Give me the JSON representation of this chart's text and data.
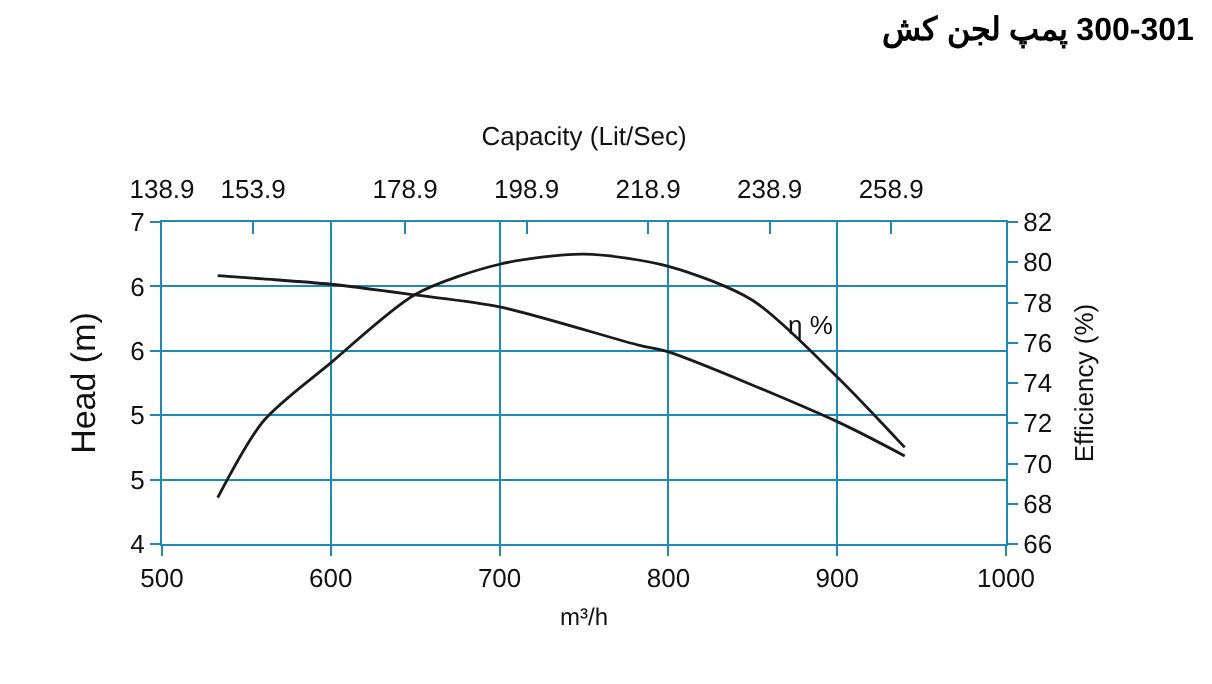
{
  "chart_data": {
    "type": "line",
    "title": "پمپ لجن کش 300-301",
    "xlabel": "m³/h",
    "ylabel": "Head (m)",
    "y2label": "Efficiency (%)",
    "x2label": "Capacity (Lit/Sec)",
    "xlim": [
      500,
      1000
    ],
    "xticks": [
      500,
      600,
      700,
      800,
      900,
      1000
    ],
    "x2lim": [
      138.9,
      277.8
    ],
    "x2ticks": [
      138.9,
      153.9,
      178.9,
      198.9,
      218.9,
      238.9,
      258.9
    ],
    "ylim": [
      4,
      7
    ],
    "yticks": [
      4,
      {
        "value": 4.6,
        "label": "5"
      },
      {
        "value": 5.2,
        "label": "5"
      },
      {
        "value": 5.8,
        "label": "6"
      },
      {
        "value": 6.4,
        "label": "6"
      },
      7
    ],
    "y2lim": [
      66,
      82
    ],
    "y2ticks": [
      66,
      68,
      70,
      72,
      74,
      76,
      78,
      80,
      82
    ],
    "grid": true,
    "legend": false,
    "marker": "none",
    "line_style": "solid",
    "series": [
      {
        "color": "#1a1a1a",
        "x": [
          533,
          560,
          600,
          650,
          700,
          783,
          800,
          900,
          940
        ],
        "values": [
          6.5,
          6.47,
          6.42,
          6.32,
          6.21,
          5.85,
          5.79,
          5.14,
          4.82
        ]
      },
      {
        "name": "η %",
        "axis": "y2",
        "color": "#1a1a1a",
        "x": [
          533,
          560,
          600,
          650,
          700,
          750,
          800,
          850,
          900,
          940
        ],
        "values": [
          68.3,
          72.1,
          75.0,
          78.4,
          79.9,
          80.4,
          79.8,
          78.1,
          74.3,
          70.8
        ]
      }
    ]
  }
}
